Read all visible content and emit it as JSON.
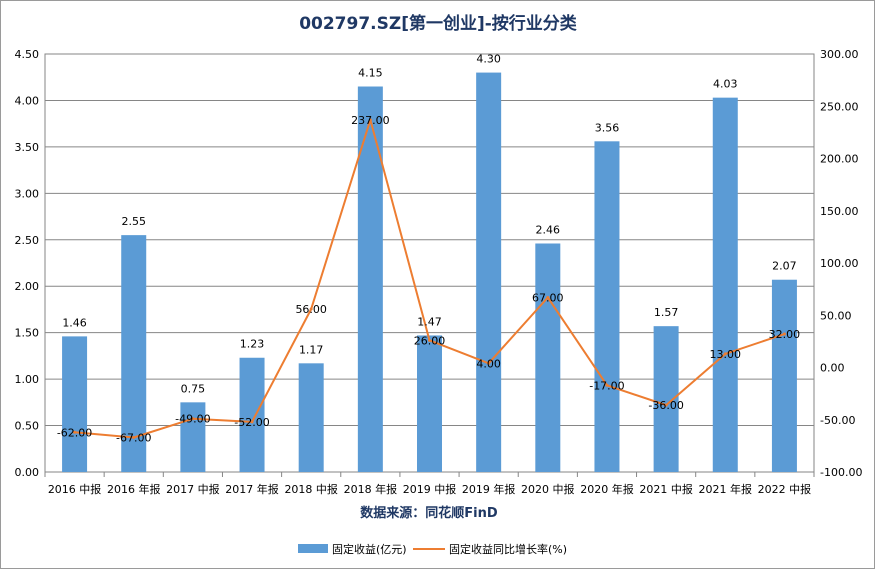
{
  "chart_data": {
    "type": "bar",
    "title": "002797.SZ[第一创业]-按行业分类",
    "xlabel": "数据来源：同花顺FinD",
    "categories": [
      "2016 中报",
      "2016 年报",
      "2017 中报",
      "2017 年报",
      "2018 中报",
      "2018 年报",
      "2019 中报",
      "2019 年报",
      "2020 中报",
      "2020 年报",
      "2021 中报",
      "2021 年报",
      "2022 中报"
    ],
    "series": [
      {
        "name": "固定收益(亿元)",
        "type": "bar",
        "axis": "left",
        "color": "#5b9bd5",
        "values": [
          1.46,
          2.55,
          0.75,
          1.23,
          1.17,
          4.15,
          1.47,
          4.3,
          2.46,
          3.56,
          1.57,
          4.03,
          2.07
        ],
        "labels": [
          "1.46",
          "2.55",
          "0.75",
          "1.23",
          "1.17",
          "4.15",
          "1.47",
          "4.30",
          "2.46",
          "3.56",
          "1.57",
          "4.03",
          "2.07"
        ]
      },
      {
        "name": "固定收益同比增长率(%)",
        "type": "line",
        "axis": "right",
        "color": "#ed7d31",
        "values": [
          -62.0,
          -67.0,
          -49.0,
          -52.0,
          56.0,
          237.0,
          26.0,
          4.0,
          67.0,
          -17.0,
          -36.0,
          13.0,
          32.0
        ],
        "labels": [
          "-62.00",
          "-67.00",
          "-49.00",
          "-52.00",
          "56.00",
          "237.00",
          "26.00",
          "4.00",
          "67.00",
          "-17.00",
          "-36.00",
          "13.00",
          "32.00"
        ]
      }
    ],
    "y_left": {
      "range": [
        0,
        4.5
      ],
      "ticks": [
        "0.00",
        "0.50",
        "1.00",
        "1.50",
        "2.00",
        "2.50",
        "3.00",
        "3.50",
        "4.00",
        "4.50"
      ]
    },
    "y_right": {
      "range": [
        -100,
        300
      ],
      "ticks": [
        "-100.00",
        "-50.00",
        "0.00",
        "50.00",
        "100.00",
        "150.00",
        "200.00",
        "250.00",
        "300.00"
      ]
    },
    "grid": true,
    "legend": "bottom"
  }
}
